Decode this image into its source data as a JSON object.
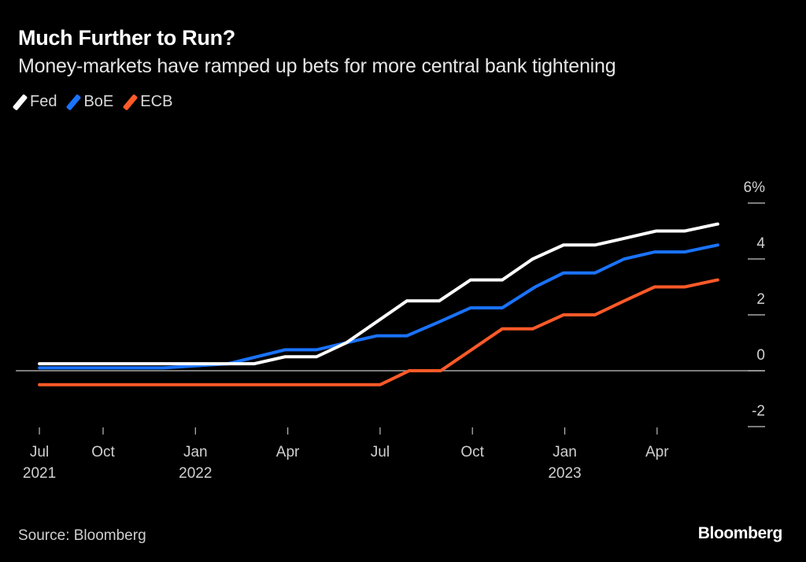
{
  "title": "Much Further to Run?",
  "subtitle": "Money-markets have ramped up bets for more central bank tightening",
  "source": "Source: Bloomberg",
  "logo": "Bloomberg",
  "legend": [
    {
      "label": "Fed",
      "color": "#ffffff"
    },
    {
      "label": "BoE",
      "color": "#1a73ff"
    },
    {
      "label": "ECB",
      "color": "#ff5a28"
    }
  ],
  "chart_data": {
    "type": "line",
    "title": "Much Further to Run?",
    "subtitle": "Money-markets have ramped up bets for more central bank tightening",
    "xlabel": "",
    "ylabel": "",
    "x_units": "months since Jul 1 2021",
    "xlim": [
      0.93,
      22.97
    ],
    "ylim": [
      -2,
      6
    ],
    "y_ticks": [
      {
        "value": 6,
        "label": "6%"
      },
      {
        "value": 4,
        "label": "4"
      },
      {
        "value": 2,
        "label": "2"
      },
      {
        "value": 0,
        "label": "0"
      },
      {
        "value": -2,
        "label": "-2"
      }
    ],
    "x_ticks": [
      {
        "value": 0.93,
        "label": "Jul",
        "sublabel": "2021"
      },
      {
        "value": 3,
        "label": "Oct",
        "sublabel": ""
      },
      {
        "value": 6,
        "label": "Jan",
        "sublabel": "2022"
      },
      {
        "value": 9,
        "label": "Apr",
        "sublabel": ""
      },
      {
        "value": 12,
        "label": "Jul",
        "sublabel": ""
      },
      {
        "value": 15,
        "label": "Oct",
        "sublabel": ""
      },
      {
        "value": 18,
        "label": "Jan",
        "sublabel": "2023"
      },
      {
        "value": 21,
        "label": "Apr",
        "sublabel": ""
      }
    ],
    "zero_line": true,
    "grid": false,
    "legend_position": "top-left",
    "y_axis_side": "right",
    "series": [
      {
        "name": "Fed",
        "color": "#ffffff",
        "points": [
          [
            0.93,
            0.25
          ],
          [
            7.91,
            0.25
          ],
          [
            8.91,
            0.5
          ],
          [
            9.93,
            0.5
          ],
          [
            10.9,
            1.0
          ],
          [
            12.87,
            2.5
          ],
          [
            13.92,
            2.5
          ],
          [
            14.94,
            3.25
          ],
          [
            15.97,
            3.25
          ],
          [
            16.96,
            4.0
          ],
          [
            17.96,
            4.5
          ],
          [
            18.98,
            4.5
          ],
          [
            19.98,
            4.75
          ],
          [
            20.97,
            5.0
          ],
          [
            21.9,
            5.0
          ],
          [
            22.97,
            5.25
          ]
        ]
      },
      {
        "name": "BoE",
        "color": "#1a73ff",
        "points": [
          [
            0.93,
            0.1
          ],
          [
            4.97,
            0.1
          ],
          [
            7.07,
            0.25
          ],
          [
            8.91,
            0.75
          ],
          [
            9.93,
            0.75
          ],
          [
            10.9,
            1.0
          ],
          [
            11.9,
            1.25
          ],
          [
            12.87,
            1.25
          ],
          [
            13.92,
            1.75
          ],
          [
            14.94,
            2.25
          ],
          [
            15.97,
            2.25
          ],
          [
            17.04,
            3.0
          ],
          [
            17.96,
            3.5
          ],
          [
            18.98,
            3.5
          ],
          [
            19.93,
            4.0
          ],
          [
            20.92,
            4.25
          ],
          [
            21.9,
            4.25
          ],
          [
            22.97,
            4.5
          ]
        ]
      },
      {
        "name": "ECB",
        "color": "#ff5a28",
        "points": [
          [
            0.93,
            -0.5
          ],
          [
            12.0,
            -0.5
          ],
          [
            12.95,
            0.0
          ],
          [
            13.97,
            0.0
          ],
          [
            15.97,
            1.5
          ],
          [
            16.96,
            1.5
          ],
          [
            17.96,
            2.0
          ],
          [
            18.98,
            2.0
          ],
          [
            19.93,
            2.5
          ],
          [
            20.92,
            3.0
          ],
          [
            21.9,
            3.0
          ],
          [
            22.97,
            3.25
          ]
        ]
      }
    ]
  }
}
